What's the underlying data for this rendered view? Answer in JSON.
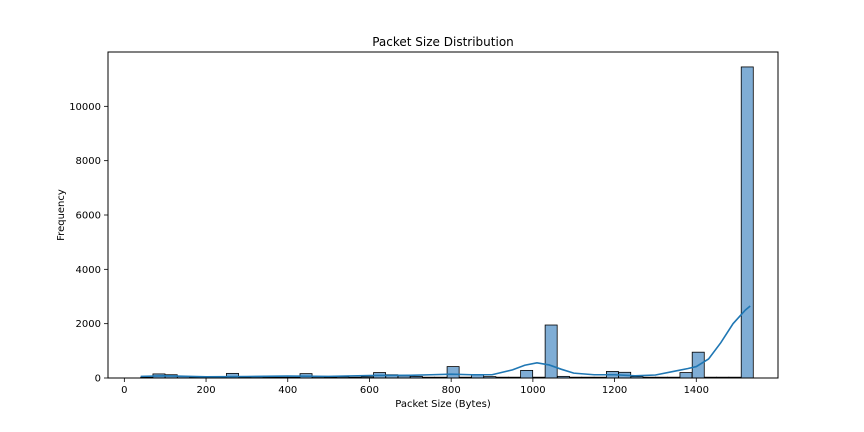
{
  "chart_data": {
    "type": "bar",
    "title": "Packet Size Distribution",
    "xlabel": "Packet Size (Bytes)",
    "ylabel": "Frequency",
    "xlim": [
      -40,
      1600
    ],
    "ylim": [
      0,
      12000
    ],
    "xticks": [
      0,
      200,
      400,
      600,
      800,
      1000,
      1200,
      1400
    ],
    "yticks": [
      0,
      2000,
      4000,
      6000,
      8000,
      10000
    ],
    "grid": false,
    "legend": "none",
    "bin_width": 29.5,
    "bins": [
      {
        "x0": 40,
        "count": 30
      },
      {
        "x0": 70,
        "count": 150
      },
      {
        "x0": 100,
        "count": 120
      },
      {
        "x0": 130,
        "count": 50
      },
      {
        "x0": 160,
        "count": 30
      },
      {
        "x0": 190,
        "count": 30
      },
      {
        "x0": 220,
        "count": 30
      },
      {
        "x0": 250,
        "count": 170
      },
      {
        "x0": 280,
        "count": 30
      },
      {
        "x0": 310,
        "count": 40
      },
      {
        "x0": 340,
        "count": 30
      },
      {
        "x0": 370,
        "count": 30
      },
      {
        "x0": 400,
        "count": 30
      },
      {
        "x0": 430,
        "count": 160
      },
      {
        "x0": 460,
        "count": 40
      },
      {
        "x0": 490,
        "count": 30
      },
      {
        "x0": 520,
        "count": 40
      },
      {
        "x0": 550,
        "count": 30
      },
      {
        "x0": 580,
        "count": 40
      },
      {
        "x0": 610,
        "count": 200
      },
      {
        "x0": 640,
        "count": 120
      },
      {
        "x0": 670,
        "count": 80
      },
      {
        "x0": 700,
        "count": 60
      },
      {
        "x0": 730,
        "count": 30
      },
      {
        "x0": 760,
        "count": 30
      },
      {
        "x0": 790,
        "count": 420
      },
      {
        "x0": 820,
        "count": 30
      },
      {
        "x0": 850,
        "count": 120
      },
      {
        "x0": 880,
        "count": 50
      },
      {
        "x0": 910,
        "count": 30
      },
      {
        "x0": 940,
        "count": 30
      },
      {
        "x0": 970,
        "count": 280
      },
      {
        "x0": 1000,
        "count": 30
      },
      {
        "x0": 1030,
        "count": 1950
      },
      {
        "x0": 1060,
        "count": 60
      },
      {
        "x0": 1090,
        "count": 30
      },
      {
        "x0": 1120,
        "count": 30
      },
      {
        "x0": 1150,
        "count": 30
      },
      {
        "x0": 1180,
        "count": 240
      },
      {
        "x0": 1210,
        "count": 210
      },
      {
        "x0": 1240,
        "count": 50
      },
      {
        "x0": 1270,
        "count": 30
      },
      {
        "x0": 1300,
        "count": 30
      },
      {
        "x0": 1330,
        "count": 30
      },
      {
        "x0": 1360,
        "count": 200
      },
      {
        "x0": 1390,
        "count": 950
      },
      {
        "x0": 1420,
        "count": 30
      },
      {
        "x0": 1450,
        "count": 30
      },
      {
        "x0": 1480,
        "count": 30
      },
      {
        "x0": 1510,
        "count": 11450
      }
    ],
    "kde": {
      "x": [
        40,
        100,
        200,
        300,
        400,
        500,
        600,
        700,
        750,
        800,
        850,
        900,
        950,
        980,
        1010,
        1040,
        1070,
        1100,
        1150,
        1200,
        1250,
        1300,
        1350,
        1380,
        1400,
        1430,
        1460,
        1490,
        1520,
        1532
      ],
      "y": [
        60,
        80,
        45,
        55,
        70,
        60,
        90,
        100,
        120,
        140,
        120,
        120,
        300,
        470,
        560,
        480,
        320,
        180,
        120,
        120,
        80,
        110,
        260,
        350,
        420,
        700,
        1300,
        2000,
        2500,
        2650
      ]
    },
    "colors": {
      "bar_fill": "#7fadd5",
      "bar_edge": "#000000",
      "kde_line": "#1f77b4"
    }
  }
}
